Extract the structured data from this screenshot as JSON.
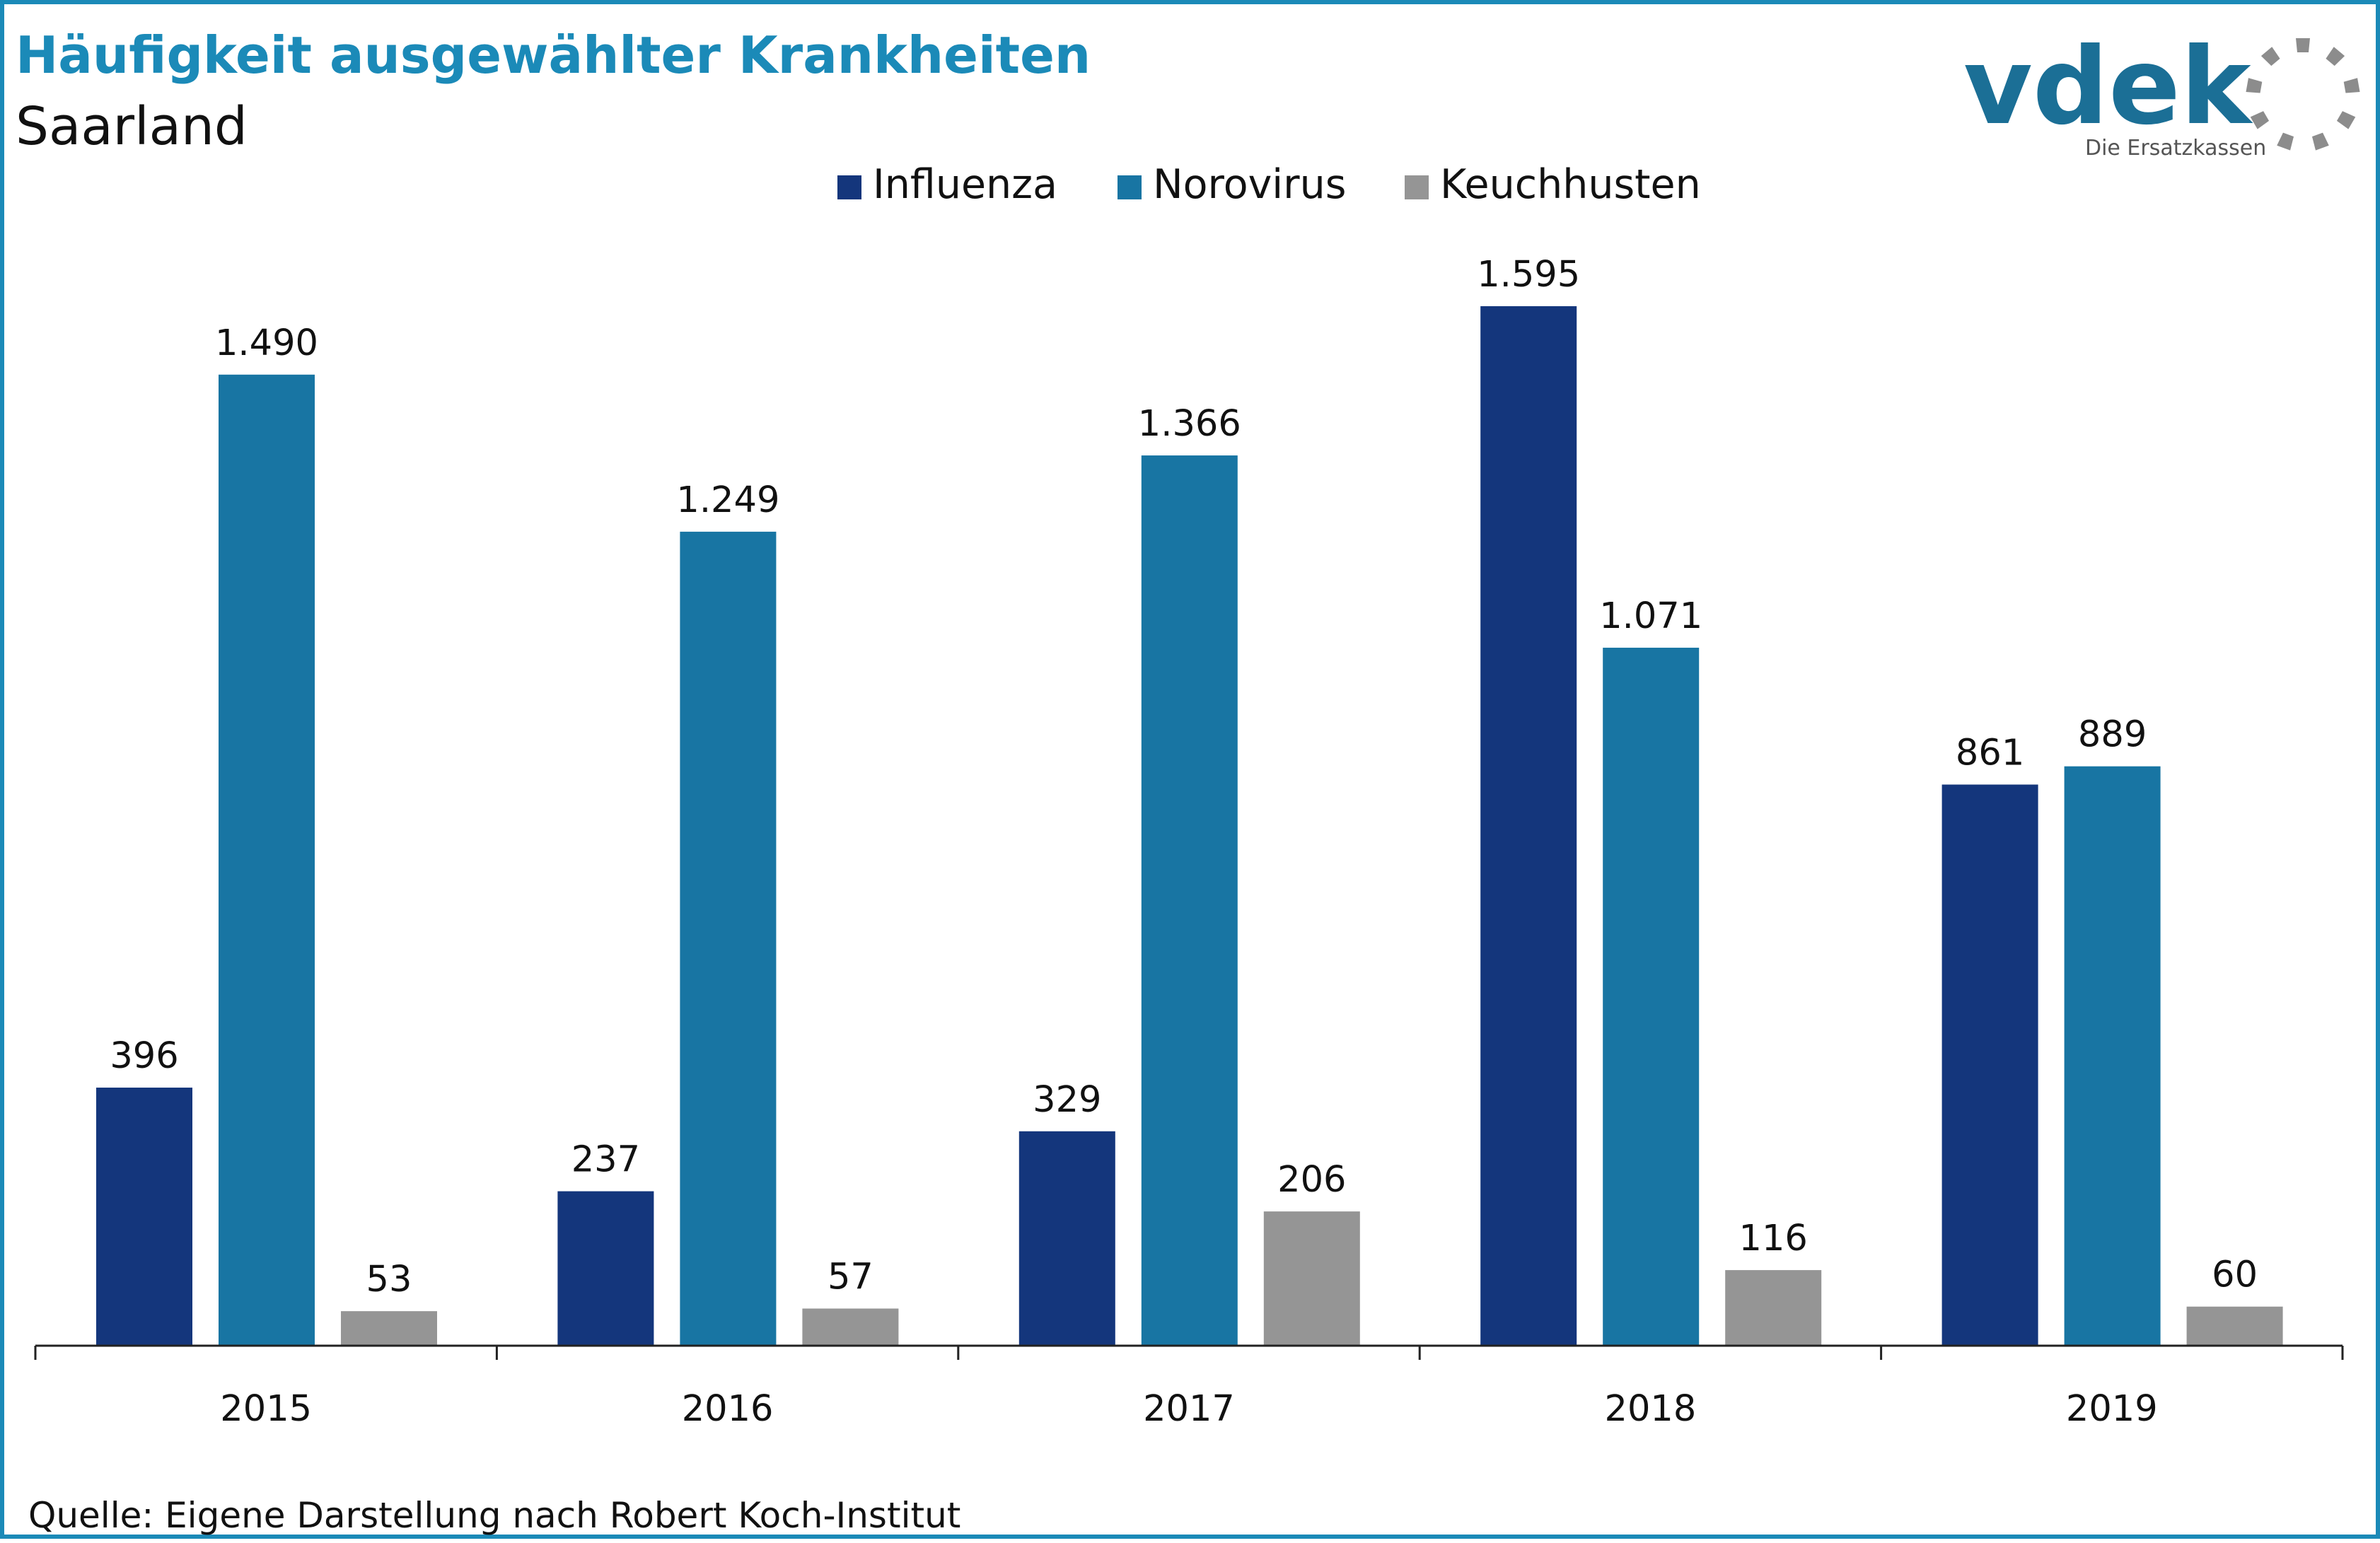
{
  "header": {
    "title": "Häufigkeit ausgewählter Krankheiten",
    "subtitle": "Saarland"
  },
  "logo": {
    "text": "vdek",
    "tagline": "Die Ersatzkassen",
    "icon": "ring-of-dots-icon"
  },
  "footer": {
    "source": "Quelle: Eigene Darstellung nach Robert Koch-Institut"
  },
  "colors": {
    "accent": "#1b8ab8",
    "influenza": "#14367c",
    "norovirus": "#1875a3",
    "keuchhusten": "#959595"
  },
  "chart_data": {
    "type": "bar",
    "categories": [
      "2015",
      "2016",
      "2017",
      "2018",
      "2019"
    ],
    "series": [
      {
        "name": "Influenza",
        "color": "#14367c",
        "values": [
          396,
          237,
          329,
          1595,
          861
        ],
        "labels": [
          "396",
          "237",
          "329",
          "1.595",
          "861"
        ]
      },
      {
        "name": "Norovirus",
        "color": "#1875a3",
        "values": [
          1490,
          1249,
          1366,
          1071,
          889
        ],
        "labels": [
          "1.490",
          "1.249",
          "1.366",
          "1.071",
          "889"
        ]
      },
      {
        "name": "Keuchhusten",
        "color": "#959595",
        "values": [
          53,
          57,
          206,
          116,
          60
        ],
        "labels": [
          "53",
          "57",
          "206",
          "116",
          "60"
        ]
      }
    ],
    "ylim": [
      0,
      1595
    ],
    "grid": false,
    "legend": "top"
  }
}
